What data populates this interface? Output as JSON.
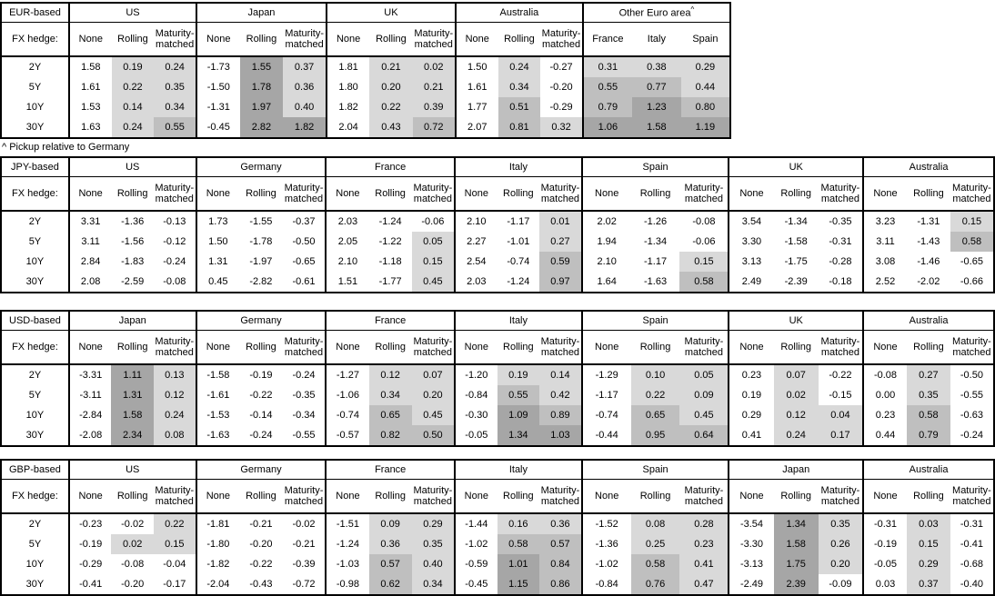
{
  "colors": {
    "background": "#ffffff",
    "border": "#000000",
    "shade_negative": "#ffffff",
    "shade_low": "#d9d9d9",
    "shade_mid": "#bfbfbf",
    "shade_high": "#a6a6a6"
  },
  "shade_thresholds": {
    "low_max": 0.5,
    "mid_max": 1.0
  },
  "chart_data": [
    {
      "type": "table",
      "title": "EUR-based",
      "row_header": "FX hedge:",
      "rows": [
        "2Y",
        "5Y",
        "10Y",
        "30Y"
      ],
      "footnote": "^ Pickup relative to Germany",
      "groups": [
        {
          "name": "US",
          "columns": [
            "None",
            "Rolling",
            "Maturity-matched"
          ],
          "shaded_columns": [
            1,
            2
          ],
          "values": [
            [
              "1.58",
              "0.19",
              "0.24"
            ],
            [
              "1.61",
              "0.22",
              "0.35"
            ],
            [
              "1.53",
              "0.14",
              "0.34"
            ],
            [
              "1.63",
              "0.24",
              "0.55"
            ]
          ]
        },
        {
          "name": "Japan",
          "columns": [
            "None",
            "Rolling",
            "Maturity-matched"
          ],
          "shaded_columns": [
            1,
            2
          ],
          "values": [
            [
              "-1.73",
              "1.55",
              "0.37"
            ],
            [
              "-1.50",
              "1.78",
              "0.36"
            ],
            [
              "-1.31",
              "1.97",
              "0.40"
            ],
            [
              "-0.45",
              "2.82",
              "1.82"
            ]
          ]
        },
        {
          "name": "UK",
          "columns": [
            "None",
            "Rolling",
            "Maturity-matched"
          ],
          "shaded_columns": [
            1,
            2
          ],
          "values": [
            [
              "1.81",
              "0.21",
              "0.02"
            ],
            [
              "1.80",
              "0.20",
              "0.21"
            ],
            [
              "1.82",
              "0.22",
              "0.39"
            ],
            [
              "2.04",
              "0.43",
              "0.72"
            ]
          ]
        },
        {
          "name": "Australia",
          "columns": [
            "None",
            "Rolling",
            "Maturity-matched"
          ],
          "shaded_columns": [
            1,
            2
          ],
          "values": [
            [
              "1.50",
              "0.24",
              "-0.27"
            ],
            [
              "1.61",
              "0.34",
              "-0.20"
            ],
            [
              "1.77",
              "0.51",
              "-0.29"
            ],
            [
              "2.07",
              "0.81",
              "0.32"
            ]
          ]
        },
        {
          "name": "Other Euro area",
          "sup": "^",
          "columns": [
            "France",
            "Italy",
            "Spain"
          ],
          "shaded_columns": [
            0,
            1,
            2
          ],
          "values": [
            [
              "0.31",
              "0.38",
              "0.29"
            ],
            [
              "0.55",
              "0.77",
              "0.44"
            ],
            [
              "0.79",
              "1.23",
              "0.80"
            ],
            [
              "1.06",
              "1.58",
              "1.19"
            ]
          ]
        }
      ]
    },
    {
      "type": "table",
      "title": "JPY-based",
      "row_header": "FX hedge:",
      "rows": [
        "2Y",
        "5Y",
        "10Y",
        "30Y"
      ],
      "groups": [
        {
          "name": "US",
          "columns": [
            "None",
            "Rolling",
            "Maturity-matched"
          ],
          "shaded_columns": [
            1,
            2
          ],
          "values": [
            [
              "3.31",
              "-1.36",
              "-0.13"
            ],
            [
              "3.11",
              "-1.56",
              "-0.12"
            ],
            [
              "2.84",
              "-1.83",
              "-0.24"
            ],
            [
              "2.08",
              "-2.59",
              "-0.08"
            ]
          ]
        },
        {
          "name": "Germany",
          "columns": [
            "None",
            "Rolling",
            "Maturity-matched"
          ],
          "shaded_columns": [
            1,
            2
          ],
          "values": [
            [
              "1.73",
              "-1.55",
              "-0.37"
            ],
            [
              "1.50",
              "-1.78",
              "-0.50"
            ],
            [
              "1.31",
              "-1.97",
              "-0.65"
            ],
            [
              "0.45",
              "-2.82",
              "-0.61"
            ]
          ]
        },
        {
          "name": "France",
          "columns": [
            "None",
            "Rolling",
            "Maturity-matched"
          ],
          "shaded_columns": [
            1,
            2
          ],
          "values": [
            [
              "2.03",
              "-1.24",
              "-0.06"
            ],
            [
              "2.05",
              "-1.22",
              "0.05"
            ],
            [
              "2.10",
              "-1.18",
              "0.15"
            ],
            [
              "1.51",
              "-1.77",
              "0.45"
            ]
          ]
        },
        {
          "name": "Italy",
          "columns": [
            "None",
            "Rolling",
            "Maturity-matched"
          ],
          "shaded_columns": [
            1,
            2
          ],
          "values": [
            [
              "2.10",
              "-1.17",
              "0.01"
            ],
            [
              "2.27",
              "-1.01",
              "0.27"
            ],
            [
              "2.54",
              "-0.74",
              "0.59"
            ],
            [
              "2.03",
              "-1.24",
              "0.97"
            ]
          ]
        },
        {
          "name": "Spain",
          "columns": [
            "None",
            "Rolling",
            "Maturity-matched"
          ],
          "shaded_columns": [
            1,
            2
          ],
          "values": [
            [
              "2.02",
              "-1.26",
              "-0.08"
            ],
            [
              "1.94",
              "-1.34",
              "-0.06"
            ],
            [
              "2.10",
              "-1.17",
              "0.15"
            ],
            [
              "1.64",
              "-1.63",
              "0.58"
            ]
          ]
        },
        {
          "name": "UK",
          "columns": [
            "None",
            "Rolling",
            "Maturity-matched"
          ],
          "shaded_columns": [
            1,
            2
          ],
          "values": [
            [
              "3.54",
              "-1.34",
              "-0.35"
            ],
            [
              "3.30",
              "-1.58",
              "-0.31"
            ],
            [
              "3.13",
              "-1.75",
              "-0.28"
            ],
            [
              "2.49",
              "-2.39",
              "-0.18"
            ]
          ]
        },
        {
          "name": "Australia",
          "columns": [
            "None",
            "Rolling",
            "Maturity-matched"
          ],
          "shaded_columns": [
            1,
            2
          ],
          "values": [
            [
              "3.23",
              "-1.31",
              "0.15"
            ],
            [
              "3.11",
              "-1.43",
              "0.58"
            ],
            [
              "3.08",
              "-1.46",
              "-0.65"
            ],
            [
              "2.52",
              "-2.02",
              "-0.66"
            ]
          ]
        }
      ]
    },
    {
      "type": "table",
      "title": "USD-based",
      "row_header": "FX hedge:",
      "rows": [
        "2Y",
        "5Y",
        "10Y",
        "30Y"
      ],
      "groups": [
        {
          "name": "Japan",
          "columns": [
            "None",
            "Rolling",
            "Maturity-matched"
          ],
          "shaded_columns": [
            1,
            2
          ],
          "values": [
            [
              "-3.31",
              "1.11",
              "0.13"
            ],
            [
              "-3.11",
              "1.31",
              "0.12"
            ],
            [
              "-2.84",
              "1.58",
              "0.24"
            ],
            [
              "-2.08",
              "2.34",
              "0.08"
            ]
          ]
        },
        {
          "name": "Germany",
          "columns": [
            "None",
            "Rolling",
            "Maturity-matched"
          ],
          "shaded_columns": [
            1,
            2
          ],
          "values": [
            [
              "-1.58",
              "-0.19",
              "-0.24"
            ],
            [
              "-1.61",
              "-0.22",
              "-0.35"
            ],
            [
              "-1.53",
              "-0.14",
              "-0.34"
            ],
            [
              "-1.63",
              "-0.24",
              "-0.55"
            ]
          ]
        },
        {
          "name": "France",
          "columns": [
            "None",
            "Rolling",
            "Maturity-matched"
          ],
          "shaded_columns": [
            1,
            2
          ],
          "values": [
            [
              "-1.27",
              "0.12",
              "0.07"
            ],
            [
              "-1.06",
              "0.34",
              "0.20"
            ],
            [
              "-0.74",
              "0.65",
              "0.45"
            ],
            [
              "-0.57",
              "0.82",
              "0.50"
            ]
          ]
        },
        {
          "name": "Italy",
          "columns": [
            "None",
            "Rolling",
            "Maturity-matched"
          ],
          "shaded_columns": [
            1,
            2
          ],
          "values": [
            [
              "-1.20",
              "0.19",
              "0.14"
            ],
            [
              "-0.84",
              "0.55",
              "0.42"
            ],
            [
              "-0.30",
              "1.09",
              "0.89"
            ],
            [
              "-0.05",
              "1.34",
              "1.03"
            ]
          ]
        },
        {
          "name": "Spain",
          "columns": [
            "None",
            "Rolling",
            "Maturity-matched"
          ],
          "shaded_columns": [
            1,
            2
          ],
          "values": [
            [
              "-1.29",
              "0.10",
              "0.05"
            ],
            [
              "-1.17",
              "0.22",
              "0.09"
            ],
            [
              "-0.74",
              "0.65",
              "0.45"
            ],
            [
              "-0.44",
              "0.95",
              "0.64"
            ]
          ]
        },
        {
          "name": "UK",
          "columns": [
            "None",
            "Rolling",
            "Maturity-matched"
          ],
          "shaded_columns": [
            1,
            2
          ],
          "values": [
            [
              "0.23",
              "0.07",
              "-0.22"
            ],
            [
              "0.19",
              "0.02",
              "-0.15"
            ],
            [
              "0.29",
              "0.12",
              "0.04"
            ],
            [
              "0.41",
              "0.24",
              "0.17"
            ]
          ]
        },
        {
          "name": "Australia",
          "columns": [
            "None",
            "Rolling",
            "Maturity-matched"
          ],
          "shaded_columns": [
            1,
            2
          ],
          "values": [
            [
              "-0.08",
              "0.27",
              "-0.50"
            ],
            [
              "0.00",
              "0.35",
              "-0.55"
            ],
            [
              "0.23",
              "0.58",
              "-0.63"
            ],
            [
              "0.44",
              "0.79",
              "-0.24"
            ]
          ]
        }
      ]
    },
    {
      "type": "table",
      "title": "GBP-based",
      "row_header": "FX hedge:",
      "rows": [
        "2Y",
        "5Y",
        "10Y",
        "30Y"
      ],
      "groups": [
        {
          "name": "US",
          "columns": [
            "None",
            "Rolling",
            "Maturity-matched"
          ],
          "shaded_columns": [
            1,
            2
          ],
          "values": [
            [
              "-0.23",
              "-0.02",
              "0.22"
            ],
            [
              "-0.19",
              "0.02",
              "0.15"
            ],
            [
              "-0.29",
              "-0.08",
              "-0.04"
            ],
            [
              "-0.41",
              "-0.20",
              "-0.17"
            ]
          ]
        },
        {
          "name": "Germany",
          "columns": [
            "None",
            "Rolling",
            "Maturity-matched"
          ],
          "shaded_columns": [
            1,
            2
          ],
          "values": [
            [
              "-1.81",
              "-0.21",
              "-0.02"
            ],
            [
              "-1.80",
              "-0.20",
              "-0.21"
            ],
            [
              "-1.82",
              "-0.22",
              "-0.39"
            ],
            [
              "-2.04",
              "-0.43",
              "-0.72"
            ]
          ]
        },
        {
          "name": "France",
          "columns": [
            "None",
            "Rolling",
            "Maturity-matched"
          ],
          "shaded_columns": [
            1,
            2
          ],
          "values": [
            [
              "-1.51",
              "0.09",
              "0.29"
            ],
            [
              "-1.24",
              "0.36",
              "0.35"
            ],
            [
              "-1.03",
              "0.57",
              "0.40"
            ],
            [
              "-0.98",
              "0.62",
              "0.34"
            ]
          ]
        },
        {
          "name": "Italy",
          "columns": [
            "None",
            "Rolling",
            "Maturity-matched"
          ],
          "shaded_columns": [
            1,
            2
          ],
          "values": [
            [
              "-1.44",
              "0.16",
              "0.36"
            ],
            [
              "-1.02",
              "0.58",
              "0.57"
            ],
            [
              "-0.59",
              "1.01",
              "0.84"
            ],
            [
              "-0.45",
              "1.15",
              "0.86"
            ]
          ]
        },
        {
          "name": "Spain",
          "columns": [
            "None",
            "Rolling",
            "Maturity-matched"
          ],
          "shaded_columns": [
            1,
            2
          ],
          "values": [
            [
              "-1.52",
              "0.08",
              "0.28"
            ],
            [
              "-1.36",
              "0.25",
              "0.23"
            ],
            [
              "-1.02",
              "0.58",
              "0.41"
            ],
            [
              "-0.84",
              "0.76",
              "0.47"
            ]
          ]
        },
        {
          "name": "Japan",
          "columns": [
            "None",
            "Rolling",
            "Maturity-matched"
          ],
          "shaded_columns": [
            1,
            2
          ],
          "values": [
            [
              "-3.54",
              "1.34",
              "0.35"
            ],
            [
              "-3.30",
              "1.58",
              "0.26"
            ],
            [
              "-3.13",
              "1.75",
              "0.20"
            ],
            [
              "-2.49",
              "2.39",
              "-0.09"
            ]
          ]
        },
        {
          "name": "Australia",
          "columns": [
            "None",
            "Rolling",
            "Maturity-matched"
          ],
          "shaded_columns": [
            1,
            2
          ],
          "values": [
            [
              "-0.31",
              "0.03",
              "-0.31"
            ],
            [
              "-0.19",
              "0.15",
              "-0.41"
            ],
            [
              "-0.05",
              "0.29",
              "-0.68"
            ],
            [
              "0.03",
              "0.37",
              "-0.40"
            ]
          ]
        }
      ]
    }
  ]
}
